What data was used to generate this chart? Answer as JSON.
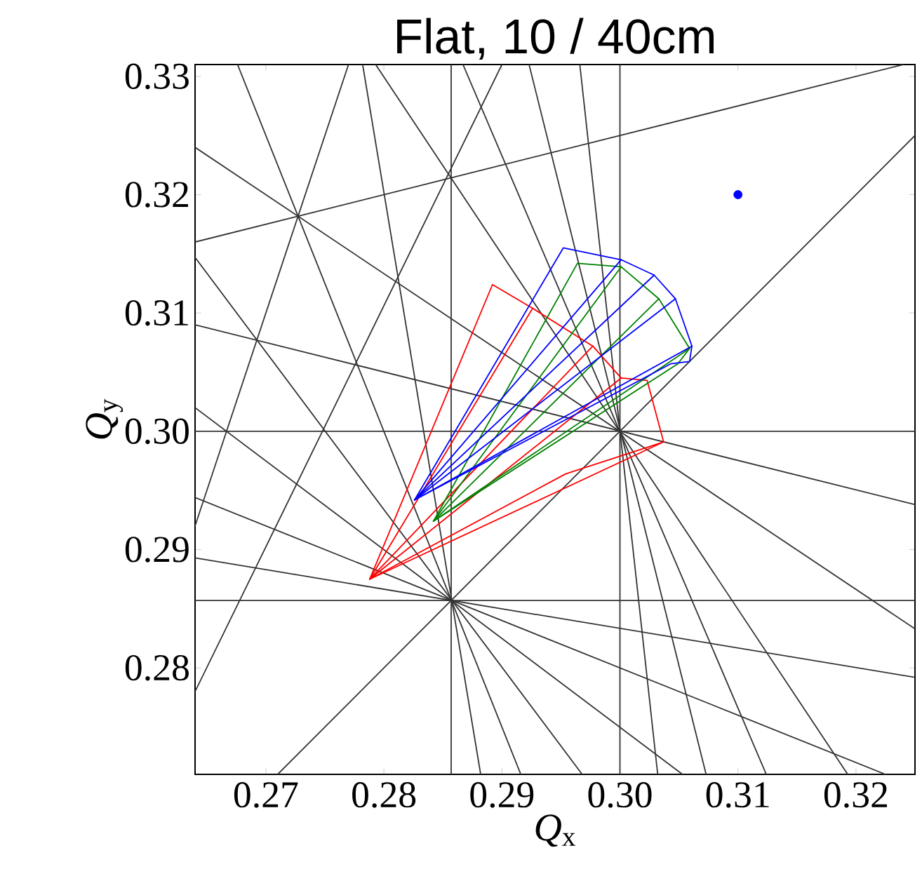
{
  "chart_data": {
    "type": "line",
    "title": "Flat, 10 / 40cm",
    "xlabel": "*Q*$_{x}$",
    "ylabel": "*Q*$_{y}$",
    "xlim": [
      0.264,
      0.325
    ],
    "ylim": [
      0.271,
      0.331
    ],
    "xticks": [
      0.27,
      0.28,
      0.29,
      {
        "value": 0.3,
        "label": "0.30"
      },
      0.31,
      0.32
    ],
    "yticks": [
      0.28,
      0.29,
      {
        "value": 0.3,
        "label": "0.30"
      },
      0.31,
      0.32,
      0.33
    ],
    "series": [
      {
        "color": "#333333",
        "x": [
          0.271,
          0.325
        ],
        "values": [
          0.271,
          0.325
        ]
      },
      {
        "color": "#333333",
        "x": [
          0.3,
          0.3
        ],
        "values": [
          0.271,
          0.331
        ]
      },
      {
        "color": "#333333",
        "x": [
          0.2857,
          0.2857
        ],
        "values": [
          0.271,
          0.331
        ]
      },
      {
        "color": "#333333",
        "x": [
          0.264,
          0.325
        ],
        "values": [
          0.3,
          0.3
        ]
      },
      {
        "color": "#333333",
        "x": [
          0.264,
          0.325
        ],
        "values": [
          0.2857,
          0.2857
        ]
      },
      {
        "color": "#333333",
        "x": [
          0.264,
          0.325
        ],
        "values": [
          0.309,
          0.2938
        ]
      },
      {
        "color": "#333333",
        "x": [
          0.264,
          0.325
        ],
        "values": [
          0.324,
          0.2833
        ]
      },
      {
        "color": "#333333",
        "x": [
          0.2793,
          0.3193
        ],
        "values": [
          0.331,
          0.271
        ]
      },
      {
        "color": "#333333",
        "x": [
          0.2867,
          0.3124
        ],
        "values": [
          0.331,
          0.271
        ]
      },
      {
        "color": "#333333",
        "x": [
          0.2923,
          0.3073
        ],
        "values": [
          0.331,
          0.271
        ]
      },
      {
        "color": "#333333",
        "x": [
          0.2966,
          0.3032
        ],
        "values": [
          0.331,
          0.271
        ]
      },
      {
        "color": "#333333",
        "x": [
          0.264,
          0.325
        ],
        "values": [
          0.2893,
          0.2792
        ]
      },
      {
        "color": "#333333",
        "x": [
          0.264,
          0.3225
        ],
        "values": [
          0.2944,
          0.271
        ]
      },
      {
        "color": "#333333",
        "x": [
          0.264,
          0.3053
        ],
        "values": [
          0.302,
          0.271
        ]
      },
      {
        "color": "#333333",
        "x": [
          0.264,
          0.2968
        ],
        "values": [
          0.3147,
          0.271
        ]
      },
      {
        "color": "#333333",
        "x": [
          0.2676,
          0.2916
        ],
        "values": [
          0.331,
          0.271
        ]
      },
      {
        "color": "#333333",
        "x": [
          0.2782,
          0.2882
        ],
        "values": [
          0.331,
          0.271
        ]
      },
      {
        "color": "#333333",
        "x": [
          0.264,
          0.324
        ],
        "values": [
          0.316,
          0.331
        ]
      },
      {
        "color": "#333333",
        "x": [
          0.264,
          0.277
        ],
        "values": [
          0.292,
          0.331
        ]
      },
      {
        "color": "#333333",
        "x": [
          0.264,
          0.29
        ],
        "values": [
          0.278,
          0.331
        ]
      },
      {
        "color": "#ff0000",
        "x": [
          0.2788,
          0.2892,
          0.2926,
          0.2977,
          0.3001,
          0.3023,
          0.3037
        ],
        "values": [
          0.2875,
          0.3124,
          0.3104,
          0.3072,
          0.3045,
          0.3043,
          0.2991
        ]
      },
      {
        "color": "#ff0000",
        "x": [
          0.2788,
          0.2954,
          0.3037
        ],
        "values": [
          0.2875,
          0.2964,
          0.2991
        ]
      },
      {
        "color": "#ff0000",
        "x": [
          0.2788,
          0.2926
        ],
        "values": [
          0.2875,
          0.3104
        ]
      },
      {
        "color": "#ff0000",
        "x": [
          0.2788,
          0.2977
        ],
        "values": [
          0.2875,
          0.3072
        ]
      },
      {
        "color": "#ff0000",
        "x": [
          0.2788,
          0.3001
        ],
        "values": [
          0.2875,
          0.3045
        ]
      },
      {
        "color": "#ff0000",
        "x": [
          0.2788,
          0.3037
        ],
        "values": [
          0.2875,
          0.2991
        ]
      },
      {
        "color": "#008000",
        "x": [
          0.2842,
          0.2964,
          0.3001,
          0.3033,
          0.3059
        ],
        "values": [
          0.2924,
          0.3142,
          0.3139,
          0.3112,
          0.307
        ]
      },
      {
        "color": "#008000",
        "x": [
          0.2842,
          0.3049,
          0.3059
        ],
        "values": [
          0.2924,
          0.3057,
          0.307
        ]
      },
      {
        "color": "#008000",
        "x": [
          0.2842,
          0.3001
        ],
        "values": [
          0.2924,
          0.3139
        ]
      },
      {
        "color": "#008000",
        "x": [
          0.2842,
          0.3033
        ],
        "values": [
          0.2924,
          0.3112
        ]
      },
      {
        "color": "#008000",
        "x": [
          0.2842,
          0.3059
        ],
        "values": [
          0.2924,
          0.307
        ]
      },
      {
        "color": "#0000ff",
        "x": [
          0.2826,
          0.2952,
          0.3001,
          0.3029,
          0.3047,
          0.3061
        ],
        "values": [
          0.2942,
          0.3155,
          0.3145,
          0.3132,
          0.3112,
          0.3072
        ]
      },
      {
        "color": "#0000ff",
        "x": [
          0.2826,
          0.3043,
          0.3059,
          0.3061
        ],
        "values": [
          0.2942,
          0.3057,
          0.3059,
          0.3072
        ]
      },
      {
        "color": "#0000ff",
        "x": [
          0.2826,
          0.3001
        ],
        "values": [
          0.2942,
          0.3145
        ]
      },
      {
        "color": "#0000ff",
        "x": [
          0.2826,
          0.3029
        ],
        "values": [
          0.2942,
          0.3132
        ]
      },
      {
        "color": "#0000ff",
        "x": [
          0.2826,
          0.3047
        ],
        "values": [
          0.2942,
          0.3112
        ]
      },
      {
        "color": "#0000ff",
        "x": [
          0.2826,
          0.3061
        ],
        "values": [
          0.2942,
          0.3072
        ]
      },
      {
        "type": "scatter",
        "marker": "circle",
        "color": "#0000ff",
        "x": [
          0.31
        ],
        "values": [
          0.32
        ]
      }
    ]
  }
}
